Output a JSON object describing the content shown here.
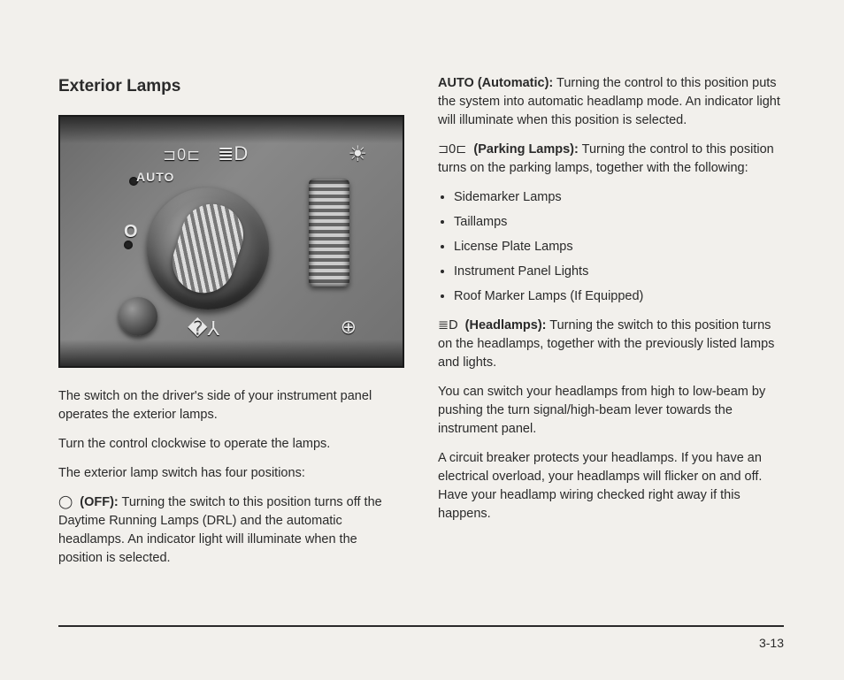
{
  "heading": "Exterior Lamps",
  "photo": {
    "labels": {
      "auto": "AUTO",
      "off": "O",
      "park": "⊐0⊏",
      "head": "≣D",
      "bright": "☀",
      "fog": "�⅄",
      "dome": "⊕"
    }
  },
  "left": {
    "p1": "The switch on the driver's side of your instrument panel operates the exterior lamps.",
    "p2": "Turn the control clockwise to operate the lamps.",
    "p3": "The exterior lamp switch has four positions:",
    "off_sym": "◯",
    "off_label": "(OFF):",
    "off_body": " Turning the switch to this position turns off the Daytime Running Lamps (DRL) and the automatic headlamps. An indicator light will illuminate when the position is selected."
  },
  "right": {
    "auto_label": "AUTO (Automatic):",
    "auto_body": " Turning the control to this position puts the system into automatic headlamp mode. An indicator light will illuminate when this position is selected.",
    "park_sym": "⊐0⊏",
    "park_label": "(Parking Lamps):",
    "park_body": " Turning the control to this position turns on the parking lamps, together with the following:",
    "bullets": [
      "Sidemarker Lamps",
      "Taillamps",
      "License Plate Lamps",
      "Instrument Panel Lights",
      "Roof Marker Lamps (If Equipped)"
    ],
    "head_sym": "≣D",
    "head_label": "(Headlamps):",
    "head_body": " Turning the switch to this position turns on the headlamps, together with the previously listed lamps and lights.",
    "p_high": "You can switch your headlamps from high to low-beam by pushing the turn signal/high-beam lever towards the instrument panel.",
    "p_cb": "A circuit breaker protects your headlamps. If you have an electrical overload, your headlamps will flicker on and off. Have your headlamp wiring checked right away if this happens."
  },
  "page_number": "3-13"
}
